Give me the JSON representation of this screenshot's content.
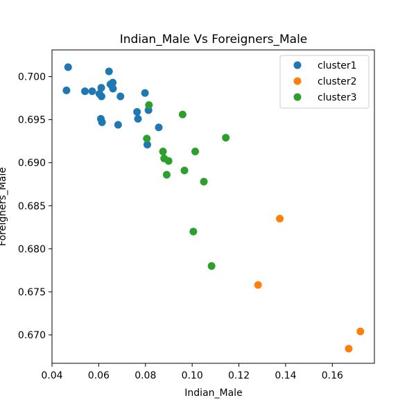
{
  "chart_data": {
    "type": "scatter",
    "title": "Indian_Male Vs Foreigners_Male",
    "xlabel": "Indian_Male",
    "ylabel": "Foreigners_Male",
    "xlim": [
      0.04,
      0.178
    ],
    "ylim": [
      0.6667,
      0.7031
    ],
    "x_ticks": [
      "0.04",
      "0.06",
      "0.08",
      "0.10",
      "0.12",
      "0.14",
      "0.16"
    ],
    "x_tick_values": [
      0.04,
      0.06,
      0.08,
      0.1,
      0.12,
      0.14,
      0.16
    ],
    "y_ticks": [
      "0.670",
      "0.675",
      "0.680",
      "0.685",
      "0.690",
      "0.695",
      "0.700"
    ],
    "y_tick_values": [
      0.67,
      0.675,
      0.68,
      0.685,
      0.69,
      0.695,
      0.7
    ],
    "grid": false,
    "legend_position": "top-right",
    "series": [
      {
        "name": "cluster1",
        "color": "#1f77b4",
        "points": [
          {
            "x": 0.0469,
            "y": 0.7011
          },
          {
            "x": 0.0462,
            "y": 0.6984
          },
          {
            "x": 0.0541,
            "y": 0.6983
          },
          {
            "x": 0.0572,
            "y": 0.6983
          },
          {
            "x": 0.0603,
            "y": 0.698
          },
          {
            "x": 0.0611,
            "y": 0.6987
          },
          {
            "x": 0.0612,
            "y": 0.6977
          },
          {
            "x": 0.0644,
            "y": 0.7006
          },
          {
            "x": 0.065,
            "y": 0.6991
          },
          {
            "x": 0.066,
            "y": 0.6993
          },
          {
            "x": 0.0661,
            "y": 0.6986
          },
          {
            "x": 0.0693,
            "y": 0.6977
          },
          {
            "x": 0.0798,
            "y": 0.6981
          },
          {
            "x": 0.0609,
            "y": 0.6951
          },
          {
            "x": 0.0614,
            "y": 0.6947
          },
          {
            "x": 0.0764,
            "y": 0.6959
          },
          {
            "x": 0.0768,
            "y": 0.6951
          },
          {
            "x": 0.0813,
            "y": 0.6961
          },
          {
            "x": 0.0683,
            "y": 0.6944
          },
          {
            "x": 0.0857,
            "y": 0.6941
          },
          {
            "x": 0.0808,
            "y": 0.6921
          }
        ]
      },
      {
        "name": "cluster2",
        "color": "#ff7f0e",
        "points": [
          {
            "x": 0.1375,
            "y": 0.6835
          },
          {
            "x": 0.1282,
            "y": 0.6758
          },
          {
            "x": 0.172,
            "y": 0.6704
          },
          {
            "x": 0.167,
            "y": 0.6684
          }
        ]
      },
      {
        "name": "cluster3",
        "color": "#2ca02c",
        "points": [
          {
            "x": 0.0815,
            "y": 0.6967
          },
          {
            "x": 0.0959,
            "y": 0.6956
          },
          {
            "x": 0.0806,
            "y": 0.6928
          },
          {
            "x": 0.1144,
            "y": 0.6929
          },
          {
            "x": 0.0875,
            "y": 0.6913
          },
          {
            "x": 0.1013,
            "y": 0.6913
          },
          {
            "x": 0.088,
            "y": 0.6905
          },
          {
            "x": 0.0899,
            "y": 0.6902
          },
          {
            "x": 0.0967,
            "y": 0.6891
          },
          {
            "x": 0.0891,
            "y": 0.6886
          },
          {
            "x": 0.105,
            "y": 0.6878
          },
          {
            "x": 0.1005,
            "y": 0.682
          },
          {
            "x": 0.1083,
            "y": 0.678
          }
        ]
      }
    ]
  }
}
